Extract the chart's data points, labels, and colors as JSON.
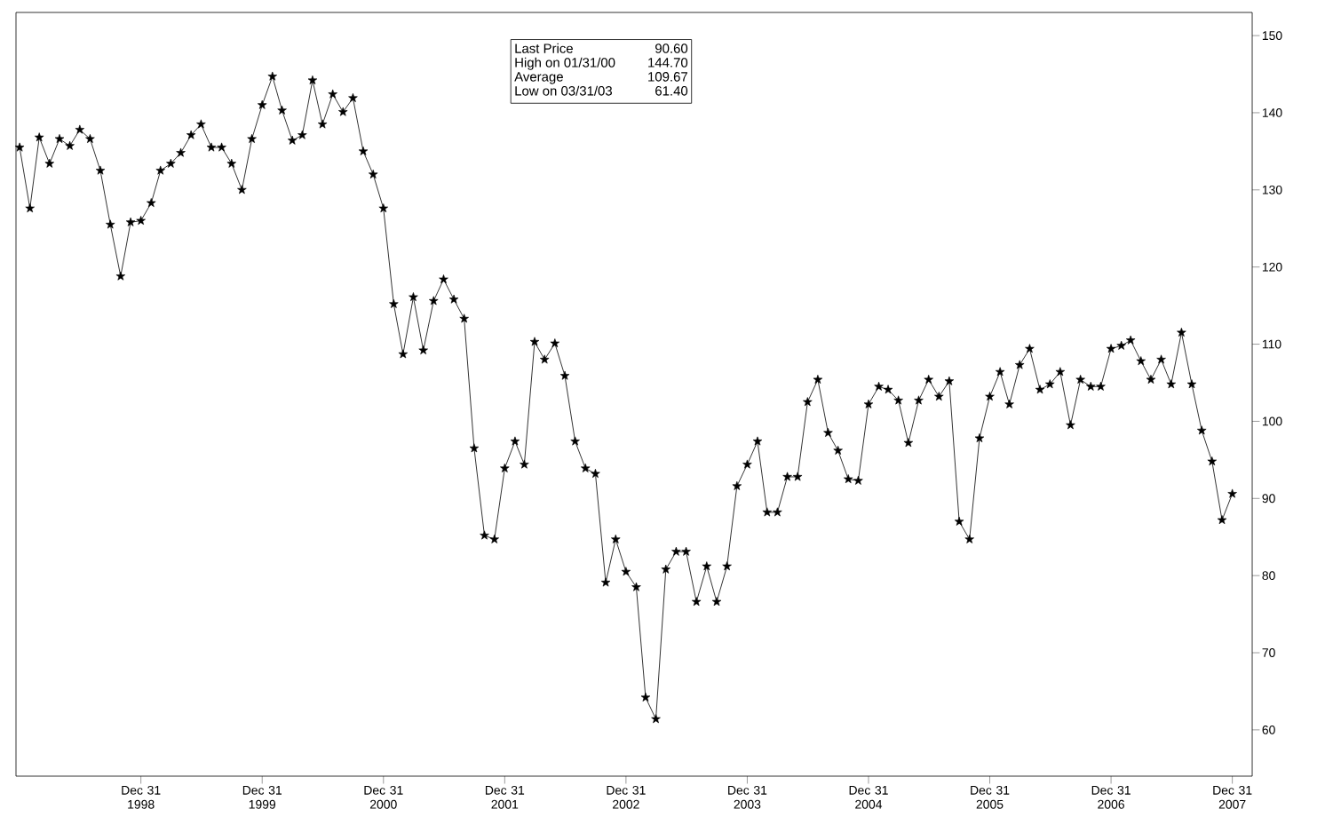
{
  "chart_data": {
    "type": "line",
    "marker": "star",
    "line_style": "solid",
    "x": [
      "1997-12-31",
      "1998-01-31",
      "1998-02-28",
      "1998-03-31",
      "1998-04-30",
      "1998-05-31",
      "1998-06-30",
      "1998-07-31",
      "1998-08-31",
      "1998-09-30",
      "1998-10-31",
      "1998-11-30",
      "1998-12-31",
      "1999-01-31",
      "1999-02-28",
      "1999-03-31",
      "1999-04-30",
      "1999-05-31",
      "1999-06-30",
      "1999-07-31",
      "1999-08-31",
      "1999-09-30",
      "1999-10-31",
      "1999-11-30",
      "1999-12-31",
      "2000-01-31",
      "2000-02-29",
      "2000-03-31",
      "2000-04-30",
      "2000-05-31",
      "2000-06-30",
      "2000-07-31",
      "2000-08-31",
      "2000-09-30",
      "2000-10-31",
      "2000-11-30",
      "2000-12-31",
      "2001-01-31",
      "2001-02-28",
      "2001-03-31",
      "2001-04-30",
      "2001-05-31",
      "2001-06-30",
      "2001-07-31",
      "2001-08-31",
      "2001-09-30",
      "2001-10-31",
      "2001-11-30",
      "2001-12-31",
      "2002-01-31",
      "2002-02-28",
      "2002-03-31",
      "2002-04-30",
      "2002-05-31",
      "2002-06-30",
      "2002-07-31",
      "2002-08-31",
      "2002-09-30",
      "2002-10-31",
      "2002-11-30",
      "2002-12-31",
      "2003-01-31",
      "2003-02-28",
      "2003-03-31",
      "2003-04-30",
      "2003-05-31",
      "2003-06-30",
      "2003-07-31",
      "2003-08-31",
      "2003-09-30",
      "2003-10-31",
      "2003-11-30",
      "2003-12-31",
      "2004-01-31",
      "2004-02-29",
      "2004-03-31",
      "2004-04-30",
      "2004-05-31",
      "2004-06-30",
      "2004-07-31",
      "2004-08-31",
      "2004-09-30",
      "2004-10-31",
      "2004-11-30",
      "2004-12-31",
      "2005-01-31",
      "2005-02-28",
      "2005-03-31",
      "2005-04-30",
      "2005-05-31",
      "2005-06-30",
      "2005-07-31",
      "2005-08-31",
      "2005-09-30",
      "2005-10-31",
      "2005-11-30",
      "2005-12-31",
      "2006-01-31",
      "2006-02-28",
      "2006-03-31",
      "2006-04-30",
      "2006-05-31",
      "2006-06-30",
      "2006-07-31",
      "2006-08-31",
      "2006-09-30",
      "2006-10-31",
      "2006-11-30",
      "2006-12-31",
      "2007-01-31",
      "2007-02-28",
      "2007-03-31",
      "2007-04-30",
      "2007-05-31",
      "2007-06-30",
      "2007-07-31",
      "2007-08-31",
      "2007-09-30",
      "2007-10-31",
      "2007-11-30",
      "2007-12-31"
    ],
    "series": [
      {
        "color": "#000000",
        "values": [
          135.5,
          127.6,
          136.8,
          133.4,
          136.6,
          135.7,
          137.8,
          136.6,
          132.5,
          125.5,
          118.8,
          125.8,
          126,
          128.3,
          132.5,
          133.4,
          134.8,
          137.1,
          138.5,
          135.5,
          135.5,
          133.4,
          130,
          136.6,
          141,
          144.7,
          140.3,
          136.4,
          137.1,
          144.2,
          138.5,
          142.4,
          140.1,
          141.9,
          135,
          132,
          127.6,
          115.2,
          108.7,
          116.1,
          109.2,
          115.6,
          118.4,
          115.8,
          113.3,
          96.5,
          85.2,
          84.7,
          93.9,
          97.4,
          94.4,
          110.3,
          108,
          110.1,
          105.9,
          97.4,
          93.9,
          93.2,
          79.1,
          84.7,
          80.5,
          78.5,
          64.2,
          61.4,
          80.8,
          83.1,
          83.1,
          76.6,
          81.2,
          76.6,
          81.2,
          91.6,
          94.4,
          97.4,
          88.2,
          88.2,
          92.8,
          92.8,
          102.5,
          105.4,
          98.5,
          96.2,
          92.5,
          92.3,
          102.2,
          104.5,
          104.1,
          102.7,
          97.2,
          102.7,
          105.4,
          103.2,
          105.2,
          87,
          84.7,
          97.8,
          103.2,
          106.4,
          102.2,
          107.3,
          109.4,
          104.1,
          104.8,
          106.4,
          99.5,
          105.4,
          104.5,
          104.5,
          109.4,
          109.8,
          110.5,
          107.8,
          105.4,
          108,
          104.8,
          111.5,
          104.8,
          98.8,
          94.8,
          87.2,
          90.6
        ]
      }
    ],
    "xlim": [
      "1997-12-20",
      "2008-02-29"
    ],
    "xticks": [
      {
        "value": "1998-12-31",
        "label": "Dec 31 1998"
      },
      {
        "value": "1999-12-31",
        "label": "Dec 31 1999"
      },
      {
        "value": "2000-12-31",
        "label": "Dec 31 2000"
      },
      {
        "value": "2001-12-31",
        "label": "Dec 31 2001"
      },
      {
        "value": "2002-12-31",
        "label": "Dec 31 2002"
      },
      {
        "value": "2003-12-31",
        "label": "Dec 31 2003"
      },
      {
        "value": "2004-12-31",
        "label": "Dec 31 2004"
      },
      {
        "value": "2005-12-31",
        "label": "Dec 31 2005"
      },
      {
        "value": "2006-12-31",
        "label": "Dec 31 2006"
      },
      {
        "value": "2007-12-31",
        "label": "Dec 31 2007"
      }
    ],
    "ylim": [
      54,
      153
    ],
    "yticks": [
      60,
      70,
      80,
      90,
      100,
      110,
      120,
      130,
      140,
      150
    ],
    "grid": false,
    "annotations": [
      "Last Price",
      "90.60",
      "High on  01/31/00",
      "144.70",
      "Average",
      "109.67",
      "Low on  03/31/03",
      "61.40"
    ]
  }
}
